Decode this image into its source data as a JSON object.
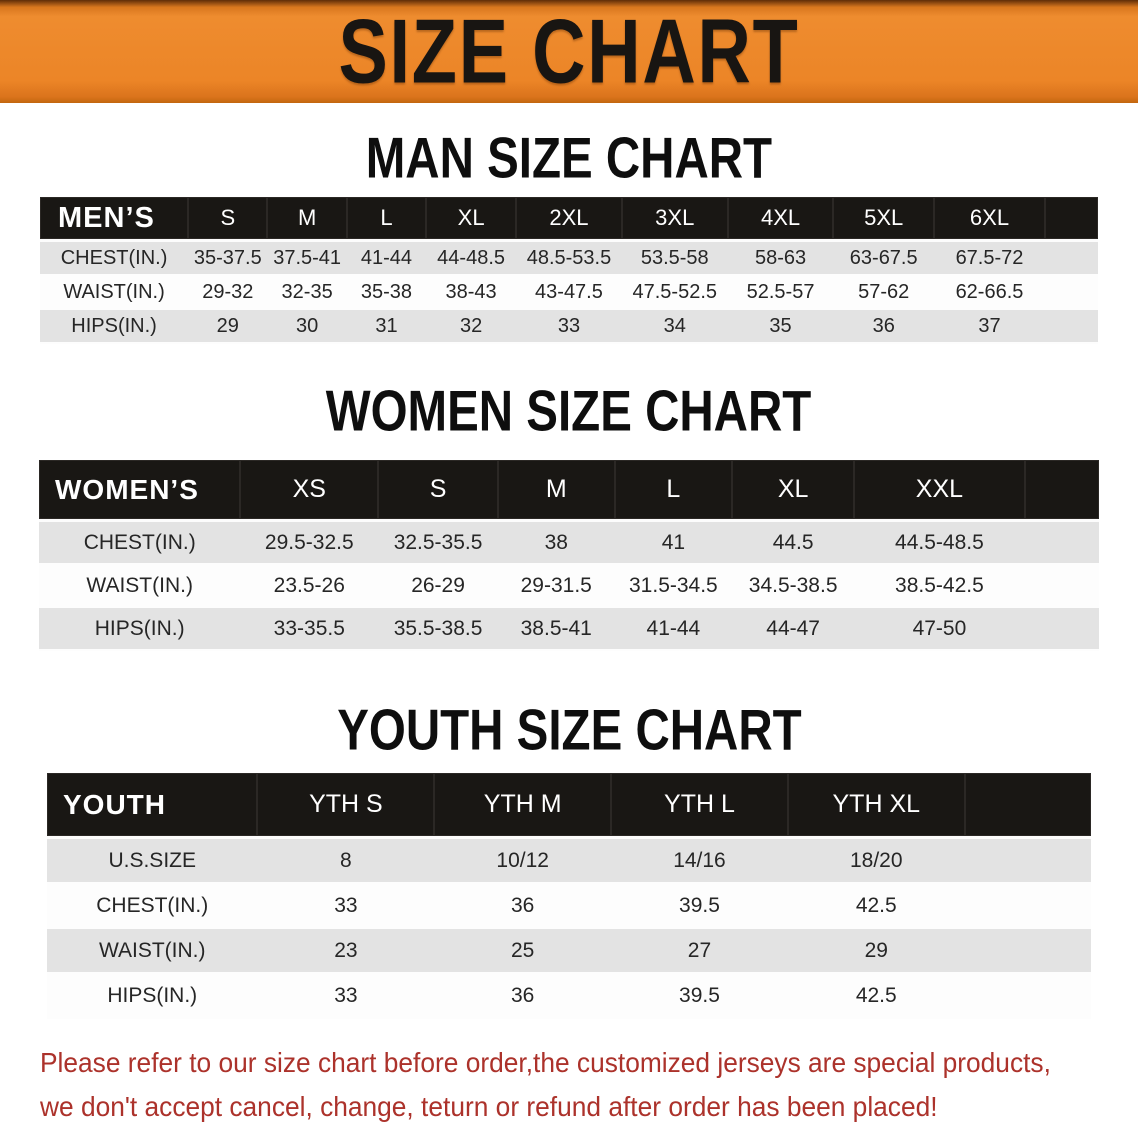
{
  "banner": {
    "title": "SIZE CHART",
    "bg_color": "#EC8527",
    "text_color": "#181512"
  },
  "sections": [
    {
      "heading": "MAN SIZE CHART",
      "table": {
        "header_label": "MEN’S",
        "columns": [
          "S",
          "M",
          "L",
          "XL",
          "2XL",
          "3XL",
          "4XL",
          "5XL",
          "6XL"
        ],
        "rows": [
          {
            "label": "CHEST(IN.)",
            "values": [
              "35-37.5",
              "37.5-41",
              "41-44",
              "44-48.5",
              "48.5-53.5",
              "53.5-58",
              "58-63",
              "63-67.5",
              "67.5-72"
            ]
          },
          {
            "label": "WAIST(IN.)",
            "values": [
              "29-32",
              "32-35",
              "35-38",
              "38-43",
              "43-47.5",
              "47.5-52.5",
              "52.5-57",
              "57-62",
              "62-66.5"
            ]
          },
          {
            "label": "HIPS(IN.)",
            "values": [
              "29",
              "30",
              "31",
              "32",
              "33",
              "34",
              "35",
              "36",
              "37"
            ]
          }
        ]
      }
    },
    {
      "heading": "WOMEN SIZE CHART",
      "table": {
        "header_label": "WOMEN’S",
        "columns": [
          "XS",
          "S",
          "M",
          "L",
          "XL",
          "XXL"
        ],
        "rows": [
          {
            "label": "CHEST(IN.)",
            "values": [
              "29.5-32.5",
              "32.5-35.5",
              "38",
              "41",
              "44.5",
              "44.5-48.5"
            ]
          },
          {
            "label": "WAIST(IN.)",
            "values": [
              "23.5-26",
              "26-29",
              "29-31.5",
              "31.5-34.5",
              "34.5-38.5",
              "38.5-42.5"
            ]
          },
          {
            "label": "HIPS(IN.)",
            "values": [
              "33-35.5",
              "35.5-38.5",
              "38.5-41",
              "41-44",
              "44-47",
              "47-50"
            ]
          }
        ]
      }
    },
    {
      "heading": "YOUTH SIZE CHART",
      "table": {
        "header_label": "YOUTH",
        "columns": [
          "YTH S",
          "YTH M",
          "YTH L",
          "YTH XL"
        ],
        "rows": [
          {
            "label": "U.S.SIZE",
            "values": [
              "8",
              "10/12",
              "14/16",
              "18/20"
            ]
          },
          {
            "label": "CHEST(IN.)",
            "values": [
              "33",
              "36",
              "39.5",
              "42.5"
            ]
          },
          {
            "label": "WAIST(IN.)",
            "values": [
              "23",
              "25",
              "27",
              "29"
            ]
          },
          {
            "label": "HIPS(IN.)",
            "values": [
              "33",
              "36",
              "39.5",
              "42.5"
            ]
          }
        ]
      }
    }
  ],
  "disclaimer": {
    "line1": "Please refer to our size chart before order,the customized jerseys are special products,",
    "line2": "we don't accept cancel, change, teturn or refund after order has been placed!",
    "text_color": "#AC322B"
  },
  "style_colors": {
    "table_header_bg": "#191714",
    "row_shade": "#E3E3E3",
    "row_plain": "#FDFDFD"
  }
}
